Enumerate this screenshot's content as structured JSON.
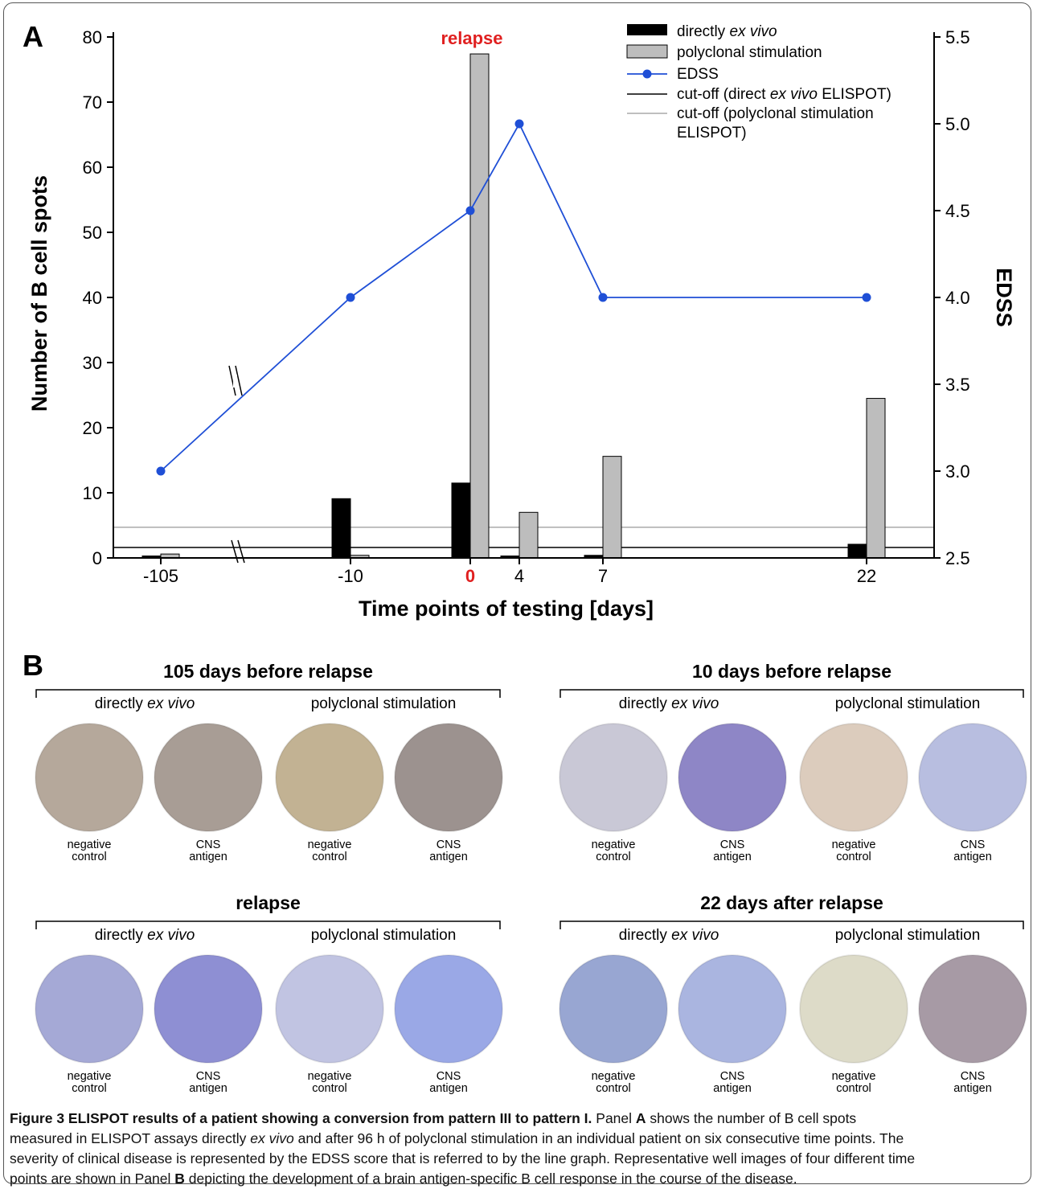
{
  "chart_data": {
    "type": "bar",
    "panel_label": "A",
    "relapse_label": "relapse",
    "categories": [
      "-105",
      "-10",
      "0",
      "4",
      "7",
      "22"
    ],
    "highlight_category": "0",
    "xlabel": "Time points of testing [days]",
    "ylabel": "Number of B cell spots",
    "y2label": "EDSS",
    "ylim": [
      0,
      80
    ],
    "y2lim": [
      2.5,
      5.5
    ],
    "yticks": [
      "0",
      "10",
      "20",
      "30",
      "40",
      "50",
      "60",
      "70",
      "80"
    ],
    "y2ticks": [
      "2.5",
      "3.0",
      "3.5",
      "4.0",
      "4.5",
      "5.0",
      "5.5"
    ],
    "axis_break": "between -105 and -10",
    "series": [
      {
        "name": "directly ex vivo",
        "type": "bar",
        "color": "#000000",
        "values": [
          0.3,
          9.1,
          11.5,
          0.3,
          0.4,
          2.1
        ]
      },
      {
        "name": "polyclonal stimulation",
        "type": "bar",
        "color": "#bdbdbd",
        "values": [
          0.6,
          0.4,
          77.4,
          7.0,
          15.6,
          24.5
        ]
      },
      {
        "name": "EDSS",
        "type": "line",
        "axis": "right",
        "color": "#1f4fd6",
        "values": [
          3.0,
          4.0,
          4.5,
          5.0,
          4.0,
          4.0
        ]
      }
    ],
    "cutoffs": [
      {
        "name": "cut-off (direct ex vivo ELISPOT)",
        "color": "#000000",
        "value": 1.6
      },
      {
        "name": "cut-off (polyclonal stimulation ELISPOT)",
        "color": "#aaaaaa",
        "value": 4.7
      }
    ],
    "legend": {
      "placement": "top-right",
      "entries": [
        {
          "pre": "directly ",
          "ital": "ex vivo",
          "post": ""
        },
        {
          "pre": "polyclonal stimulation",
          "ital": "",
          "post": ""
        },
        {
          "pre": "EDSS",
          "ital": "",
          "post": ""
        },
        {
          "pre": "cut-off (direct ",
          "ital": "ex vivo",
          "post": " ELISPOT)"
        },
        {
          "pre": "cut-off (polyclonal stimulation",
          "ital": "",
          "post": "",
          "line2": "ELISPOT)"
        }
      ]
    }
  },
  "panel_b": {
    "label": "B",
    "group_labels": {
      "left": {
        "pre": "directly ",
        "ital": "ex vivo"
      },
      "right": "polyclonal stimulation"
    },
    "well_labels": [
      [
        "negative",
        "control"
      ],
      [
        "CNS",
        "antigen"
      ],
      [
        "negative",
        "control"
      ],
      [
        "CNS",
        "antigen"
      ]
    ],
    "groups": [
      {
        "title": "105 days before relapse",
        "well_colors": [
          "#b5a89b",
          "#a89d95",
          "#c2b293",
          "#9c928f"
        ]
      },
      {
        "title": "10 days before relapse",
        "well_colors": [
          "#c9c8d6",
          "#8e86c6",
          "#dcccbd",
          "#b8bee0"
        ]
      },
      {
        "title": "relapse",
        "well_colors": [
          "#a5a9d6",
          "#8e8fd3",
          "#c1c4e2",
          "#9aa8e6"
        ]
      },
      {
        "title": "22 days after relapse",
        "well_colors": [
          "#98a6d2",
          "#aab5e0",
          "#dddbc8",
          "#a79aa5"
        ]
      }
    ]
  },
  "caption": {
    "title": "Figure 3 ELISPOT results of a patient showing a conversion from pattern III to pattern I.",
    "line1_a": " Panel ",
    "line1_b": "A",
    "line1_c": " shows the number of B cell spots",
    "line2_a": "measured in ELISPOT assays directly ",
    "line2_b": "ex vivo",
    "line2_c": " and after 96 h of polyclonal stimulation in an individual patient on six consecutive time points. The",
    "line3": "severity of clinical disease is represented by the EDSS score that is referred to by the line graph. Representative well images of four different time",
    "line4_a": "points are shown in Panel ",
    "line4_b": "B",
    "line4_c": " depicting the development of a brain antigen-specific B cell response in the course of the disease."
  }
}
